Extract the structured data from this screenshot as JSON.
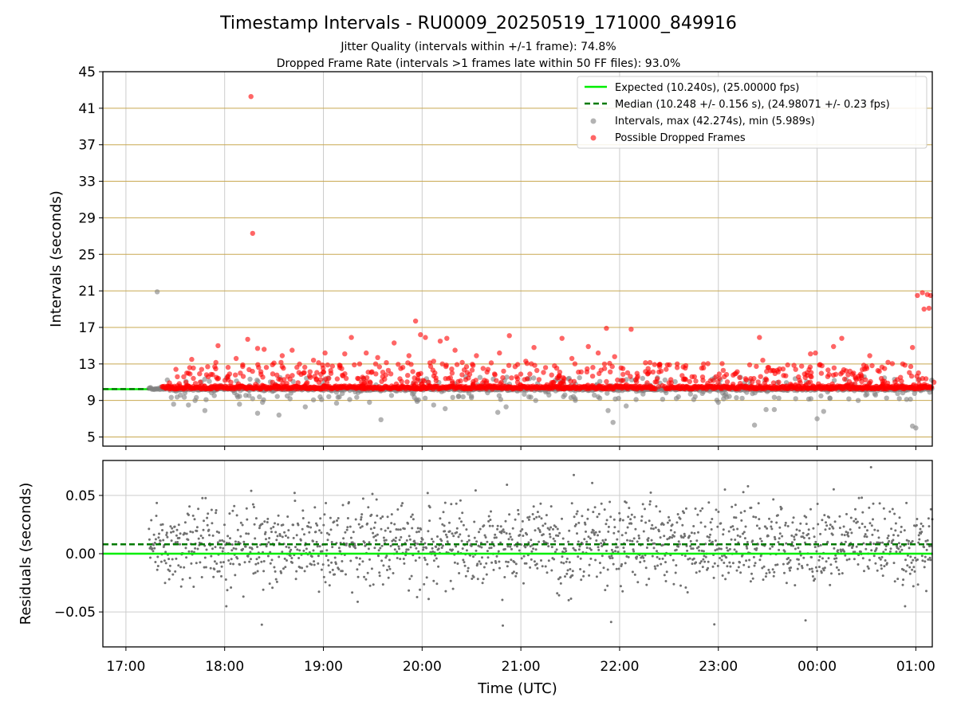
{
  "title": "Timestamp Intervals - RU0009_20250519_171000_849916",
  "subtitle_1": "Jitter Quality (intervals within +/-1 frame): 74.8%",
  "subtitle_2": "Dropped Frame Rate (intervals >1 frames late within 50 FF files): 93.0%",
  "colors": {
    "expected": "#00ee00",
    "median": "#007a00",
    "intervals": "#808080",
    "dropped": "#ff0000",
    "hgrid": "#c8a850",
    "vgrid": "#cccccc"
  },
  "chart_data": [
    {
      "type": "scatter",
      "ylabel": "Intervals (seconds)",
      "xlim": [
        "16:46",
        "01:10"
      ],
      "ylim": [
        4,
        45
      ],
      "yticks": [
        "5",
        "9",
        "13",
        "17",
        "21",
        "25",
        "29",
        "33",
        "37",
        "41",
        "45"
      ],
      "grid": "horizontal and vertical",
      "legend_position": "top-right",
      "legend": [
        "Expected (10.240s), (25.00000 fps)",
        "Median (10.248 +/- 0.156 s), (24.98071 +/- 0.23 fps)",
        "Intervals, max (42.274s), min (5.989s)",
        "Possible Dropped Frames"
      ],
      "expected_interval": 10.24,
      "median_interval": 10.248,
      "max_interval": 42.274,
      "min_interval": 5.989,
      "intervals_outliers": [
        [
          "17:19",
          20.9
        ],
        [
          "17:29",
          8.6
        ],
        [
          "17:38",
          8.5
        ],
        [
          "17:42",
          9.0
        ],
        [
          "17:48",
          7.9
        ],
        [
          "18:09",
          8.6
        ],
        [
          "18:17",
          9.2
        ],
        [
          "18:20",
          7.6
        ],
        [
          "18:23",
          8.8
        ],
        [
          "18:33",
          7.4
        ],
        [
          "18:38",
          9.5
        ],
        [
          "18:49",
          8.3
        ],
        [
          "18:58",
          9.4
        ],
        [
          "19:08",
          8.7
        ],
        [
          "19:16",
          9.1
        ],
        [
          "19:28",
          8.8
        ],
        [
          "19:35",
          6.9
        ],
        [
          "19:57",
          8.9
        ],
        [
          "20:07",
          8.5
        ],
        [
          "20:14",
          8.1
        ],
        [
          "20:30",
          9.3
        ],
        [
          "20:46",
          7.7
        ],
        [
          "20:51",
          8.3
        ],
        [
          "21:09",
          9.0
        ],
        [
          "21:33",
          9.2
        ],
        [
          "21:47",
          9.4
        ],
        [
          "21:53",
          7.9
        ],
        [
          "21:56",
          6.6
        ],
        [
          "22:04",
          8.4
        ],
        [
          "22:10",
          9.1
        ],
        [
          "23:00",
          8.8
        ],
        [
          "23:11",
          9.3
        ],
        [
          "23:22",
          6.3
        ],
        [
          "23:29",
          8.0
        ],
        [
          "23:34",
          8.0
        ],
        [
          "23:47",
          9.2
        ],
        [
          "00:00",
          7.0
        ],
        [
          "00:04",
          7.8
        ],
        [
          "00:25",
          9.0
        ],
        [
          "00:50",
          9.2
        ],
        [
          "00:58",
          6.2
        ],
        [
          "01:00",
          5.989
        ]
      ],
      "dropped_frames": [
        [
          "17:37",
          12.0
        ],
        [
          "17:40",
          13.5
        ],
        [
          "17:46",
          12.4
        ],
        [
          "17:50",
          11.6
        ],
        [
          "17:54",
          12.7
        ],
        [
          "17:56",
          15.0
        ],
        [
          "18:03",
          11.9
        ],
        [
          "18:07",
          13.6
        ],
        [
          "18:11",
          12.9
        ],
        [
          "18:14",
          15.7
        ],
        [
          "18:16",
          42.274
        ],
        [
          "18:17",
          27.3
        ],
        [
          "18:20",
          14.7
        ],
        [
          "18:24",
          14.6
        ],
        [
          "18:30",
          13.1
        ],
        [
          "18:35",
          13.9
        ],
        [
          "18:41",
          14.5
        ],
        [
          "18:48",
          12.0
        ],
        [
          "18:54",
          13.4
        ],
        [
          "19:01",
          14.2
        ],
        [
          "19:10",
          12.6
        ],
        [
          "19:13",
          14.1
        ],
        [
          "19:17",
          15.9
        ],
        [
          "19:22",
          13.0
        ],
        [
          "19:26",
          14.2
        ],
        [
          "19:33",
          13.7
        ],
        [
          "19:38",
          11.8
        ],
        [
          "19:43",
          15.3
        ],
        [
          "19:47",
          12.5
        ],
        [
          "19:52",
          13.9
        ],
        [
          "19:56",
          17.7
        ],
        [
          "19:59",
          16.2
        ],
        [
          "20:02",
          15.9
        ],
        [
          "20:07",
          13.3
        ],
        [
          "20:11",
          15.5
        ],
        [
          "20:15",
          15.8
        ],
        [
          "20:20",
          14.5
        ],
        [
          "20:27",
          12.7
        ],
        [
          "20:33",
          13.9
        ],
        [
          "20:40",
          12.4
        ],
        [
          "20:44",
          11.9
        ],
        [
          "20:47",
          14.2
        ],
        [
          "20:53",
          16.1
        ],
        [
          "20:58",
          11.4
        ],
        [
          "21:03",
          13.3
        ],
        [
          "21:08",
          14.8
        ],
        [
          "21:15",
          12.6
        ],
        [
          "21:20",
          11.0
        ],
        [
          "21:25",
          15.8
        ],
        [
          "21:31",
          13.6
        ],
        [
          "21:35",
          12.1
        ],
        [
          "21:41",
          14.9
        ],
        [
          "21:47",
          14.2
        ],
        [
          "21:52",
          16.9
        ],
        [
          "21:57",
          13.8
        ],
        [
          "22:02",
          12.5
        ],
        [
          "22:07",
          16.8
        ],
        [
          "22:18",
          12.1
        ],
        [
          "22:24",
          12.9
        ],
        [
          "22:29",
          12.9
        ],
        [
          "22:35",
          13.0
        ],
        [
          "22:44",
          11.6
        ],
        [
          "22:51",
          13.0
        ],
        [
          "22:57",
          11.2
        ],
        [
          "23:03",
          12.3
        ],
        [
          "23:10",
          11.9
        ],
        [
          "23:19",
          12.9
        ],
        [
          "23:25",
          15.9
        ],
        [
          "23:27",
          13.4
        ],
        [
          "23:33",
          12.3
        ],
        [
          "23:41",
          11.7
        ],
        [
          "23:47",
          12.4
        ],
        [
          "23:56",
          14.1
        ],
        [
          "23:59",
          14.2
        ],
        [
          "24:03",
          12.8
        ],
        [
          "24:10",
          14.9
        ],
        [
          "24:15",
          15.8
        ],
        [
          "24:20",
          12.2
        ],
        [
          "24:27",
          11.7
        ],
        [
          "24:32",
          13.9
        ],
        [
          "24:41",
          12.5
        ],
        [
          "24:52",
          13.0
        ],
        [
          "24:58",
          14.8
        ],
        [
          "25:01",
          20.5
        ],
        [
          "25:04",
          20.8
        ],
        [
          "25:05",
          19.0
        ],
        [
          "25:07",
          20.6
        ],
        [
          "25:08",
          19.1
        ],
        [
          "25:09",
          20.5
        ],
        [
          "25:11",
          11.0
        ]
      ]
    },
    {
      "type": "scatter",
      "xlabel": "Time (UTC)",
      "ylabel": "Residuals (seconds)",
      "xlim": [
        "16:46",
        "01:10"
      ],
      "ylim": [
        -0.08,
        0.08
      ],
      "yticks": [
        "−0.05",
        "0.00",
        "0.05"
      ],
      "xticks": [
        "17:00",
        "18:00",
        "19:00",
        "20:00",
        "21:00",
        "22:00",
        "23:00",
        "00:00",
        "01:00"
      ],
      "grid": "horizontal and vertical",
      "expected_residual": 0.0,
      "median_residual": 0.008,
      "residual_spread": 0.02
    }
  ]
}
